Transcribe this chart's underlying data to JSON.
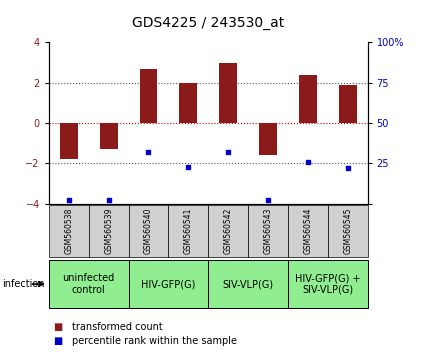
{
  "title": "GDS4225 / 243530_at",
  "samples": [
    "GSM560538",
    "GSM560539",
    "GSM560540",
    "GSM560541",
    "GSM560542",
    "GSM560543",
    "GSM560544",
    "GSM560545"
  ],
  "bar_values": [
    -1.8,
    -1.3,
    2.7,
    2.0,
    3.0,
    -1.6,
    2.4,
    1.9
  ],
  "dot_values_pct": [
    2.0,
    2.0,
    32.0,
    23.0,
    32.0,
    2.0,
    26.0,
    22.0
  ],
  "ylim": [
    -4,
    4
  ],
  "y2lim": [
    0,
    100
  ],
  "yticks": [
    -4,
    -2,
    0,
    2,
    4
  ],
  "y2ticks": [
    0,
    25,
    50,
    75,
    100
  ],
  "bar_color": "#8B1A1A",
  "dot_color": "#0000CC",
  "hline0_color": "#CC0000",
  "hline_color": "#555555",
  "bg_color": "#FFFFFF",
  "gsm_box_color": "#d0d0d0",
  "groups": [
    {
      "label": "uninfected\ncontrol",
      "start": 0,
      "end": 2,
      "color": "#90EE90"
    },
    {
      "label": "HIV-GFP(G)",
      "start": 2,
      "end": 4,
      "color": "#90EE90"
    },
    {
      "label": "SIV-VLP(G)",
      "start": 4,
      "end": 6,
      "color": "#90EE90"
    },
    {
      "label": "HIV-GFP(G) +\nSIV-VLP(G)",
      "start": 6,
      "end": 8,
      "color": "#90EE90"
    }
  ],
  "infection_label": "infection",
  "legend_bar_label": "transformed count",
  "legend_dot_label": "percentile rank within the sample",
  "title_fontsize": 10,
  "tick_fontsize": 7,
  "gsm_fontsize": 5.5,
  "group_fontsize": 7,
  "legend_fontsize": 7,
  "infection_fontsize": 7
}
